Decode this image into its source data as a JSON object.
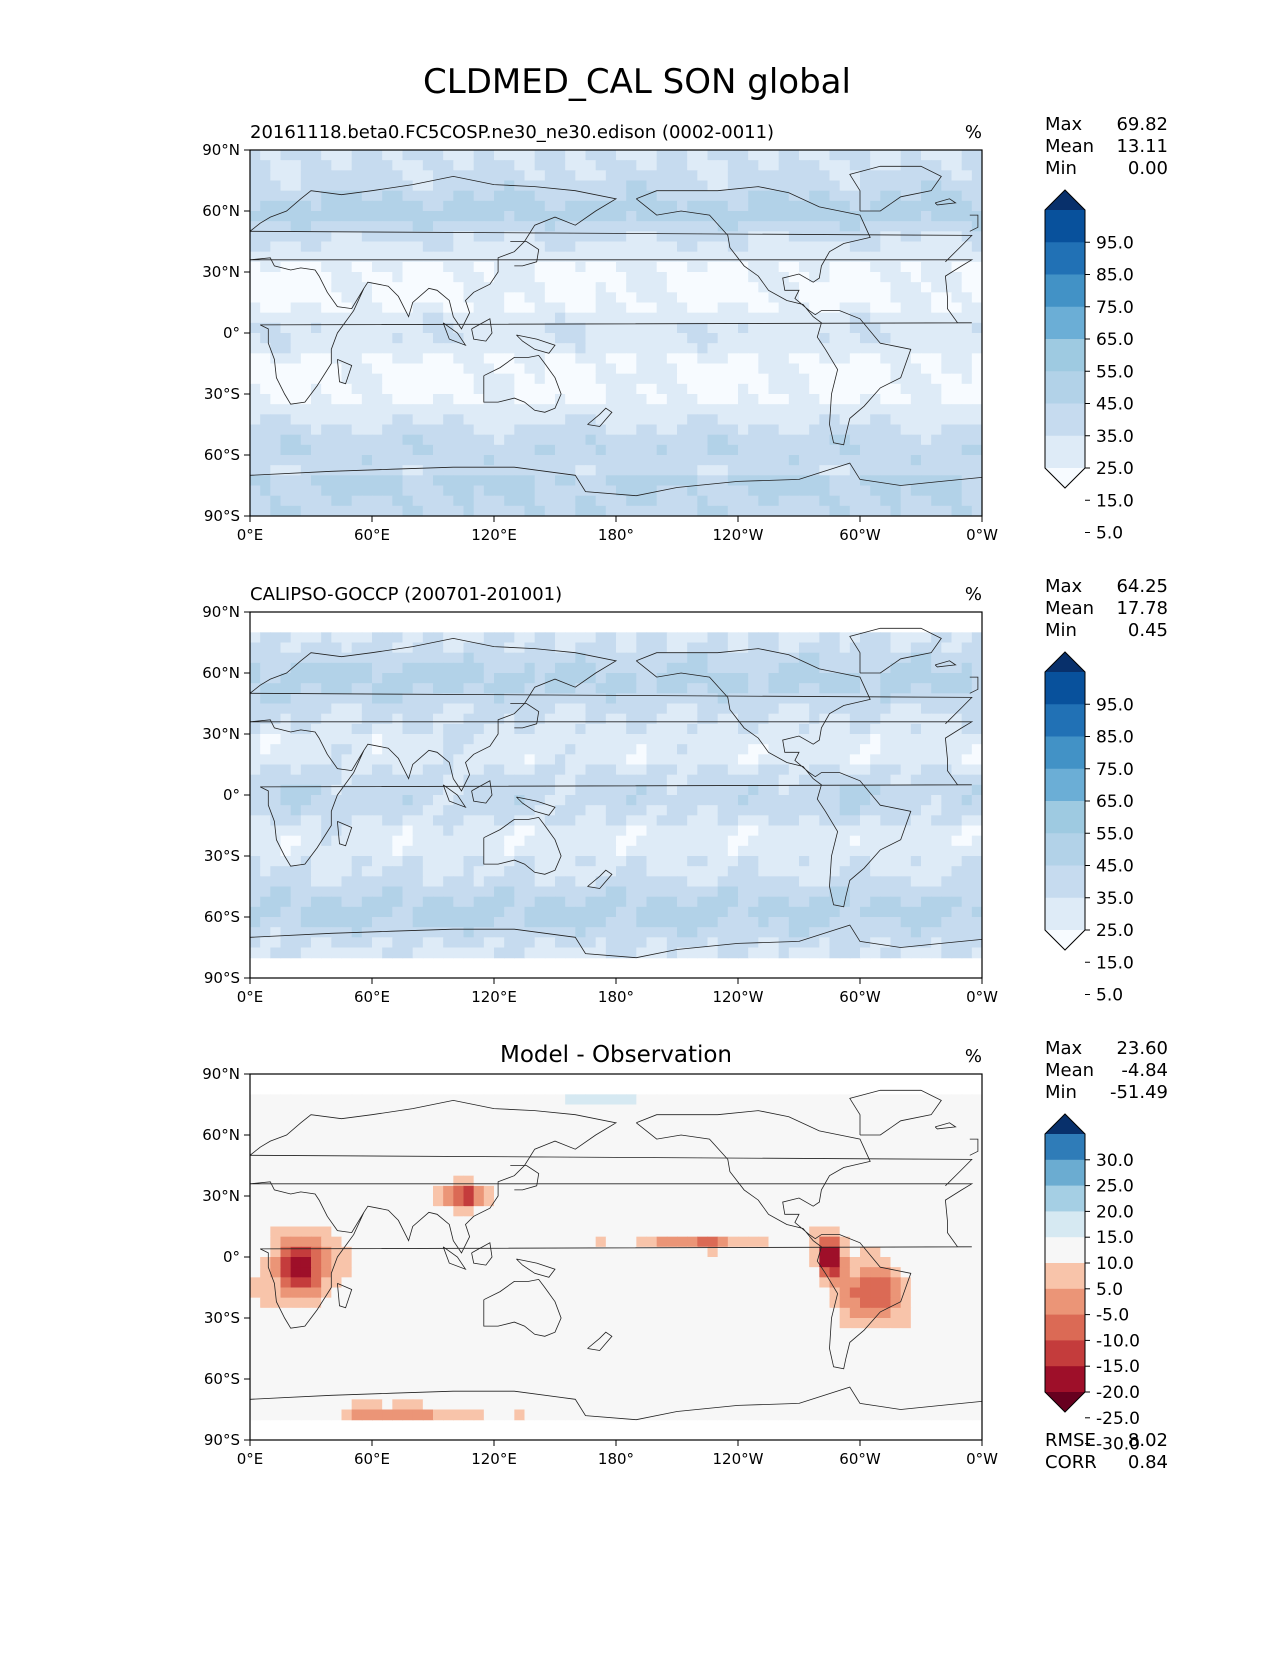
{
  "title": "CLDMED_CAL SON global",
  "colors": {
    "seq": [
      "#f7fbff",
      "#deebf7",
      "#c6dbef",
      "#b2d2e8",
      "#9ecae1",
      "#6baed6",
      "#4292c6",
      "#2171b5",
      "#08519c",
      "#08306b"
    ],
    "div": [
      "#67001f",
      "#9e0f29",
      "#c43c3c",
      "#db6a55",
      "#eb9577",
      "#f8c4aa",
      "#f7f7f7",
      "#d6e9f2",
      "#a5cfe4",
      "#6bacd1",
      "#2f7cb8",
      "#08306b"
    ],
    "coast": "#222222"
  },
  "x_ticks": [
    "0°E",
    "60°E",
    "120°E",
    "180°",
    "120°W",
    "60°W",
    "0°W"
  ],
  "y_ticks": [
    "90°N",
    "60°N",
    "30°N",
    "0°",
    "30°S",
    "60°S",
    "90°S"
  ],
  "chart_data": [
    {
      "type": "heatmap",
      "subtitle": "20161118.beta0.FC5COSP.ne30_ne30.edison (0002-0011)",
      "units": "%",
      "stats": [
        [
          "Max",
          "69.82"
        ],
        [
          "Mean",
          "13.11"
        ],
        [
          "Min",
          "0.00"
        ]
      ],
      "colorbar": {
        "levels": [
          5.0,
          15.0,
          25.0,
          35.0,
          45.0,
          55.0,
          65.0,
          75.0,
          85.0,
          95.0
        ],
        "labels": [
          "95.0",
          "85.0",
          "75.0",
          "65.0",
          "55.0",
          "45.0",
          "35.0",
          "25.0",
          "15.0",
          "5.0"
        ]
      },
      "xlim": [
        0,
        360
      ],
      "ylim": [
        -90,
        90
      ]
    },
    {
      "type": "heatmap",
      "subtitle": "CALIPSO-GOCCP (200701-201001)",
      "units": "%",
      "stats": [
        [
          "Max",
          "64.25"
        ],
        [
          "Mean",
          "17.78"
        ],
        [
          "Min",
          "0.45"
        ]
      ],
      "colorbar": {
        "levels": [
          5.0,
          15.0,
          25.0,
          35.0,
          45.0,
          55.0,
          65.0,
          75.0,
          85.0,
          95.0
        ],
        "labels": [
          "95.0",
          "85.0",
          "75.0",
          "65.0",
          "55.0",
          "45.0",
          "35.0",
          "25.0",
          "15.0",
          "5.0"
        ]
      },
      "xlim": [
        0,
        360
      ],
      "ylim": [
        -90,
        90
      ]
    },
    {
      "type": "heatmap",
      "title": "Model - Observation",
      "units": "%",
      "stats": [
        [
          "Max",
          "23.60"
        ],
        [
          "Mean",
          "-4.84"
        ],
        [
          "Min",
          "-51.49"
        ]
      ],
      "metrics": [
        [
          "RMSE",
          "8.02"
        ],
        [
          "CORR",
          "0.84"
        ]
      ],
      "colorbar": {
        "levels": [
          -30.0,
          -25.0,
          -20.0,
          -15.0,
          -10.0,
          -5.0,
          5.0,
          10.0,
          15.0,
          20.0,
          25.0,
          30.0
        ],
        "labels": [
          "30.0",
          "25.0",
          "20.0",
          "15.0",
          "10.0",
          "5.0",
          "-5.0",
          "-10.0",
          "-15.0",
          "-20.0",
          "-25.0",
          "-30.0"
        ]
      },
      "xlim": [
        0,
        360
      ],
      "ylim": [
        -90,
        90
      ]
    }
  ]
}
